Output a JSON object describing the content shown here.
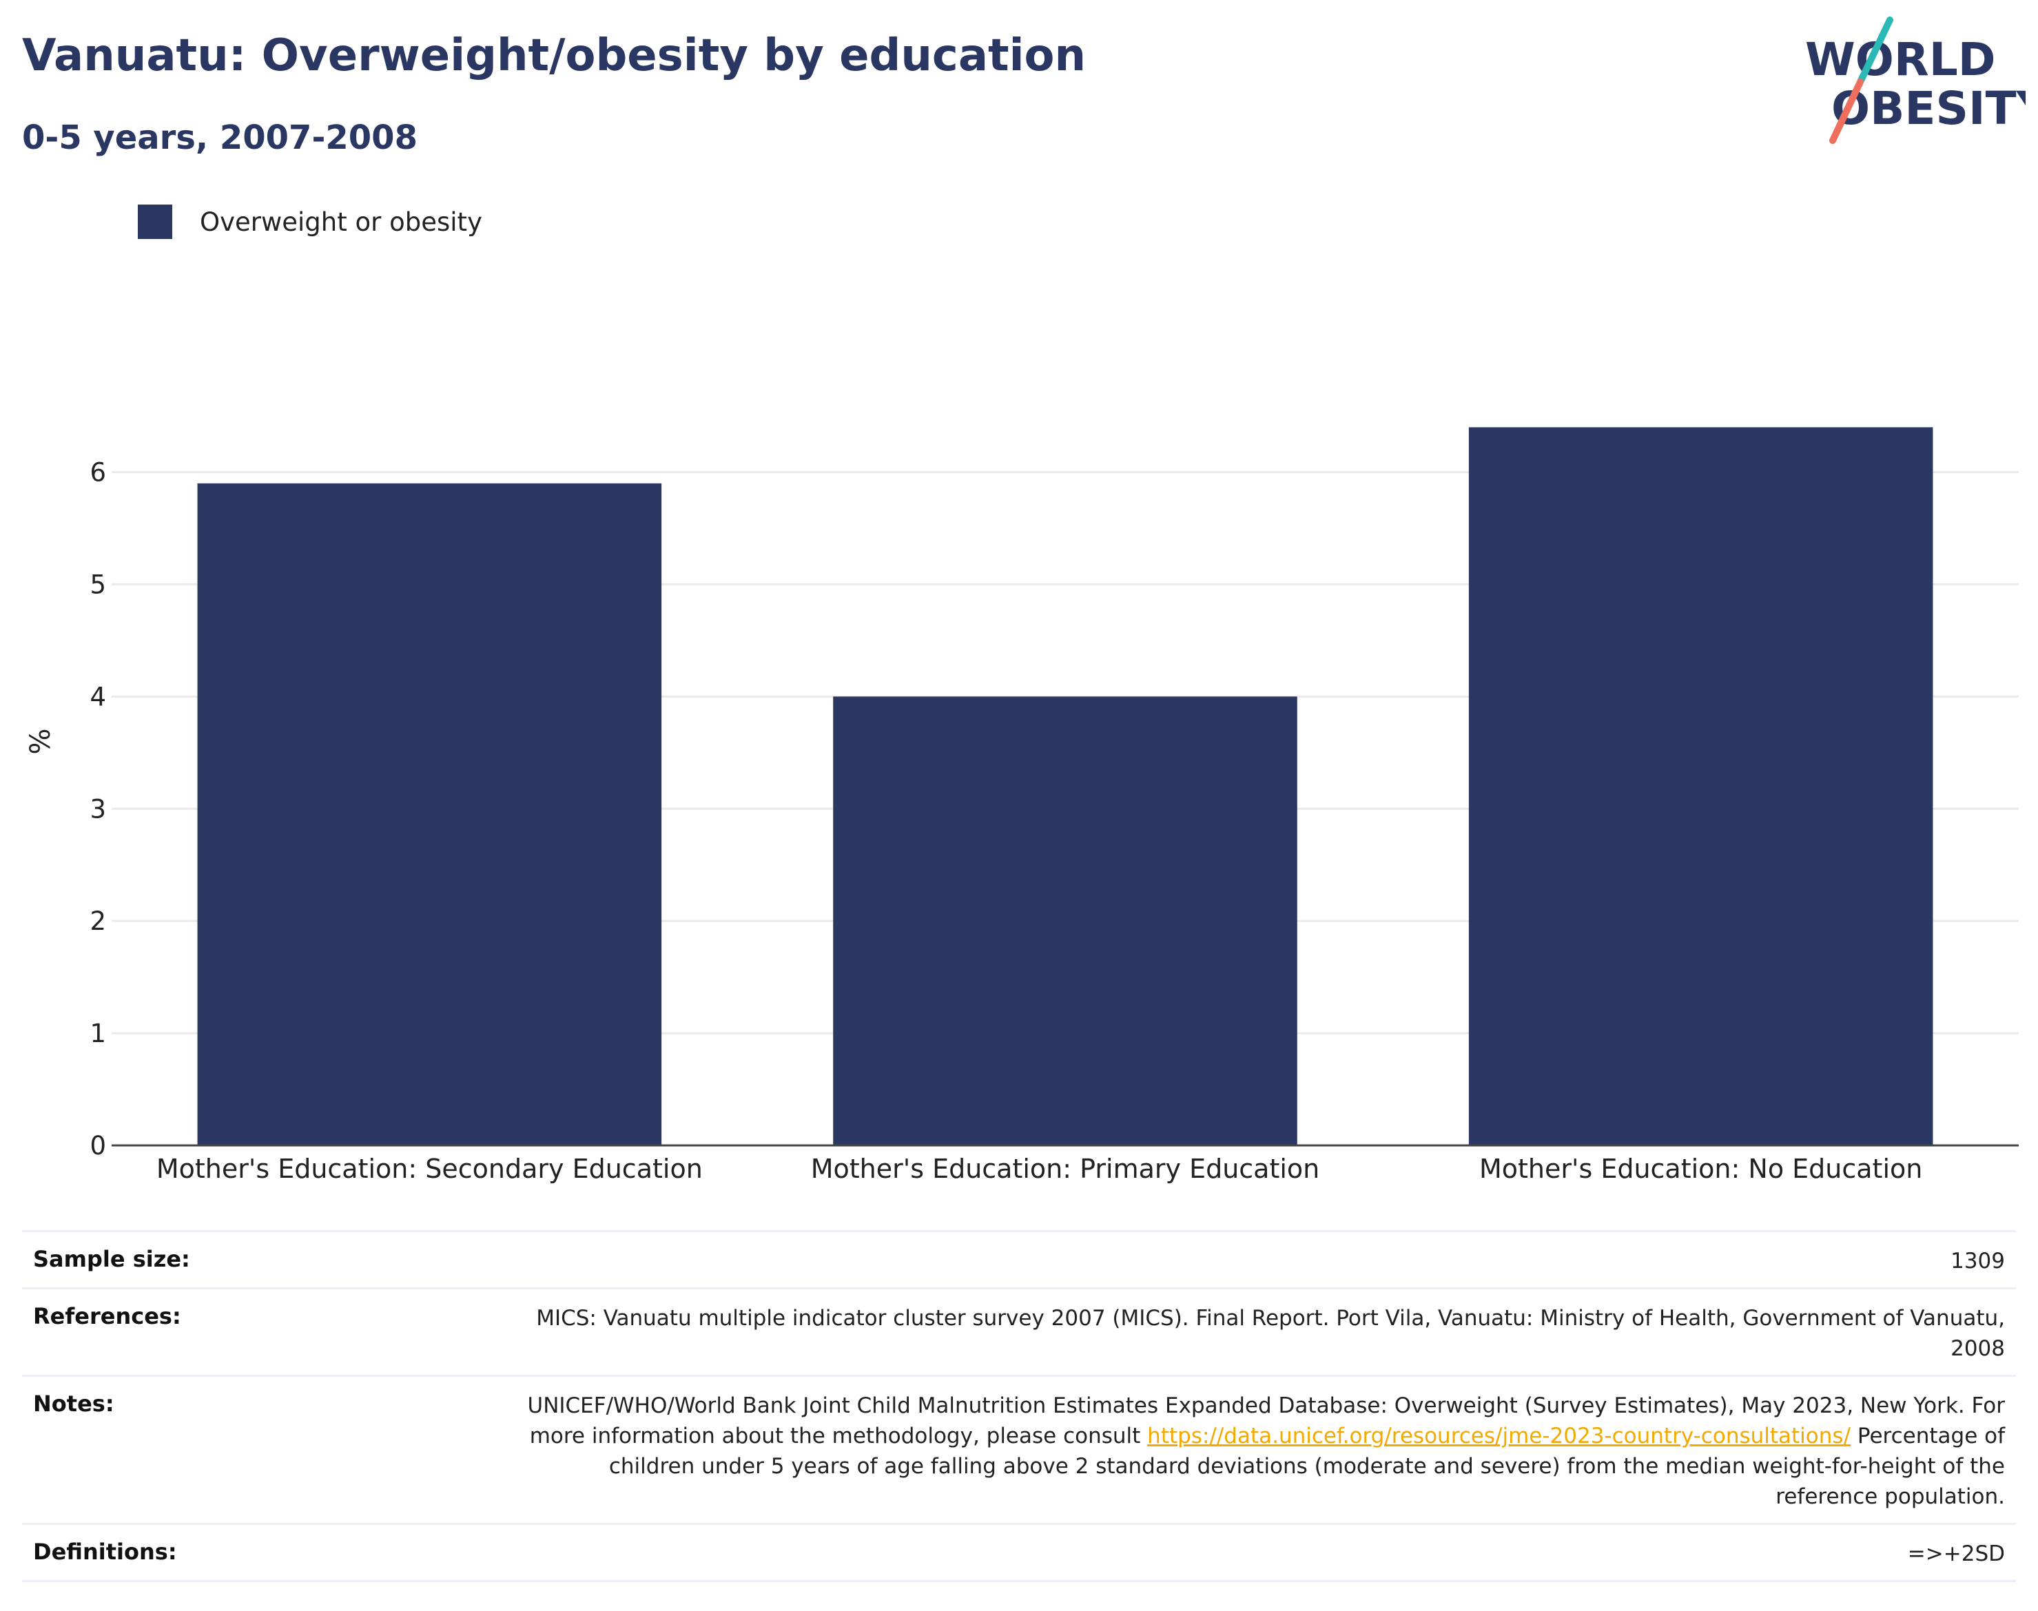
{
  "header": {
    "title": "Vanuatu: Overweight/obesity by education",
    "subtitle": "0-5 years, 2007-2008"
  },
  "logo": {
    "line1": "WORLD",
    "line2": "OBESITY",
    "colors": {
      "text": "#2b3763",
      "slash_top": "#2bb9b5",
      "slash_bottom": "#ef6f5e"
    }
  },
  "legend": {
    "items": [
      {
        "label": "Overweight or obesity",
        "color": "#2b3763"
      }
    ]
  },
  "chart_data": {
    "type": "bar",
    "categories": [
      "Mother's Education: Secondary Education",
      "Mother's Education: Primary Education",
      "Mother's Education: No Education"
    ],
    "series": [
      {
        "name": "Overweight or obesity",
        "values": [
          5.9,
          4.0,
          6.4
        ],
        "color": "#2b3763"
      }
    ],
    "title": "Vanuatu: Overweight/obesity by education",
    "subtitle": "0-5 years, 2007-2008",
    "xlabel": "",
    "ylabel": "%",
    "ylim": [
      0,
      7.2
    ],
    "yticks": [
      0,
      1,
      2,
      3,
      4,
      5,
      6
    ],
    "grid": true,
    "legend_position": "top-left"
  },
  "info": {
    "sample_size": {
      "label": "Sample size:",
      "value": "1309"
    },
    "references": {
      "label": "References:",
      "value": "MICS: Vanuatu multiple indicator cluster survey 2007 (MICS). Final Report. Port Vila, Vanuatu: Ministry of Health, Government of Vanuatu, 2008"
    },
    "notes": {
      "label": "Notes:",
      "text_before_link": "UNICEF/WHO/World Bank Joint Child Malnutrition Estimates Expanded Database: Overweight (Survey Estimates), May 2023, New York. For more information about the methodology, please consult ",
      "link": "https://data.unicef.org/resources/jme-2023-country-consultations/",
      "text_after_link": " Percentage of children under 5 years of age falling above 2 standard deviations (moderate and severe) from the median weight-for-height of the reference population."
    },
    "definitions": {
      "label": "Definitions:",
      "value": "=>+2SD"
    }
  }
}
